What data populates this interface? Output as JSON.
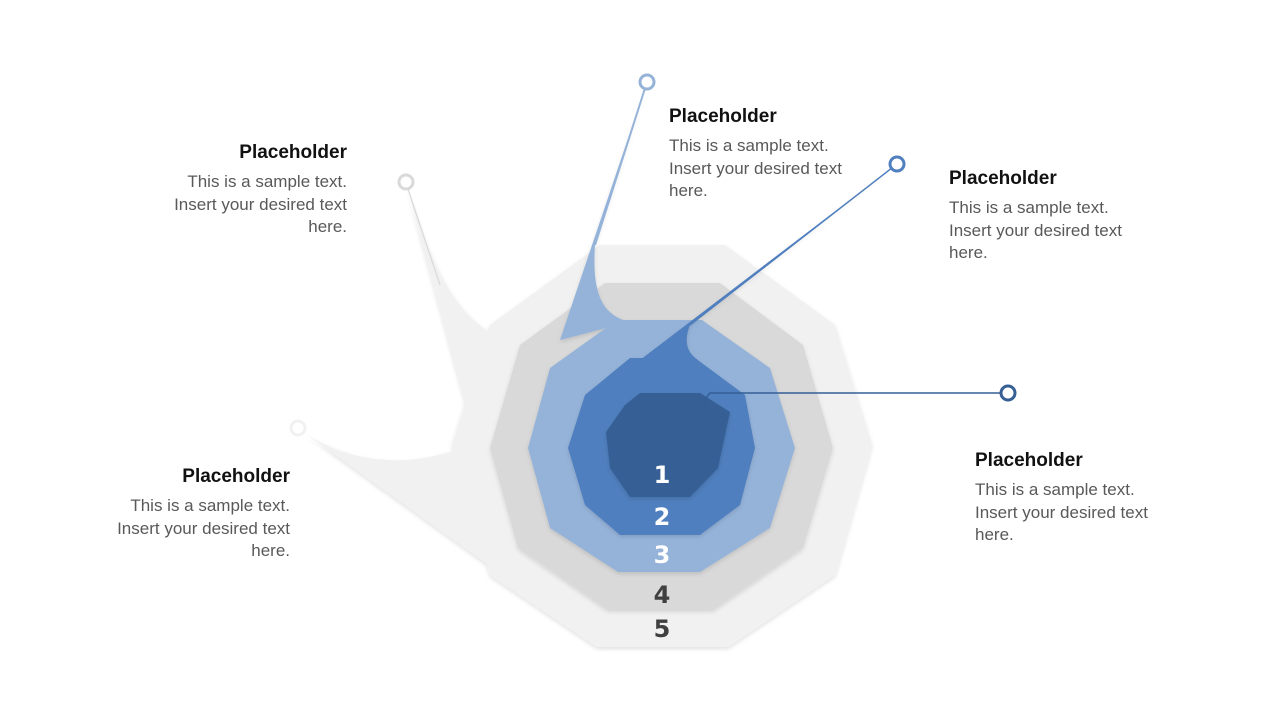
{
  "colors": {
    "layer1": "#355F95",
    "layer2": "#4F7FBE",
    "layer3": "#95B3D9",
    "layer4": "#D9D9D9",
    "layer5": "#F1F1F1",
    "number_light": "#FFFFFF",
    "number_dark": "#404040"
  },
  "layers": [
    {
      "number": "1"
    },
    {
      "number": "2"
    },
    {
      "number": "3"
    },
    {
      "number": "4"
    },
    {
      "number": "5"
    }
  ],
  "callouts": [
    {
      "title": "Placeholder",
      "lines": [
        "This is a sample text.",
        "Insert your desired text",
        "here."
      ]
    },
    {
      "title": "Placeholder",
      "lines": [
        "This is a sample text.",
        "Insert your desired text",
        "here."
      ]
    },
    {
      "title": "Placeholder",
      "lines": [
        "This is a sample text.",
        "Insert your desired text",
        "here."
      ]
    },
    {
      "title": "Placeholder",
      "lines": [
        "This is a sample text.",
        "Insert your desired text",
        "here."
      ]
    },
    {
      "title": "Placeholder",
      "lines": [
        "This is a sample text.",
        "Insert your desired text",
        "here."
      ]
    }
  ]
}
